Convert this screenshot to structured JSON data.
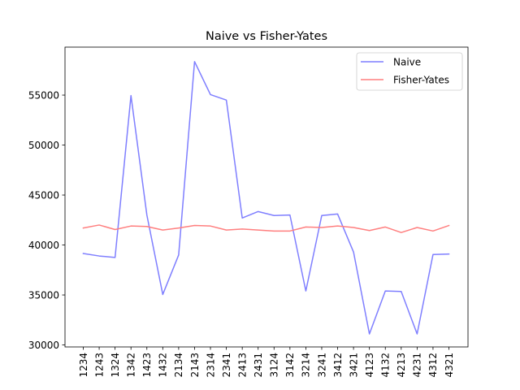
{
  "chart_data": {
    "type": "line",
    "title": "Naive vs Fisher-Yates",
    "xlabel": "",
    "ylabel": "",
    "categories": [
      "1234",
      "1243",
      "1324",
      "1342",
      "1423",
      "1432",
      "2134",
      "2143",
      "2314",
      "2341",
      "2413",
      "2431",
      "3124",
      "3142",
      "3214",
      "3241",
      "3412",
      "3421",
      "4123",
      "4132",
      "4213",
      "4231",
      "4312",
      "4321"
    ],
    "ylim": [
      29800,
      59800
    ],
    "yticks": [
      30000,
      35000,
      40000,
      45000,
      50000,
      55000
    ],
    "ytick_labels": [
      "30000",
      "35000",
      "40000",
      "45000",
      "50000",
      "55000"
    ],
    "grid": false,
    "legend_position": "top-right",
    "series": [
      {
        "name": "Naive",
        "color": "#7f7fff",
        "values": [
          39150,
          38900,
          38750,
          54950,
          43000,
          35050,
          39000,
          58350,
          55050,
          54500,
          42700,
          43350,
          42950,
          43000,
          35400,
          42950,
          43100,
          39300,
          31100,
          35400,
          35350,
          31100,
          39050,
          39100
        ]
      },
      {
        "name": "Fisher-Yates",
        "color": "#ff7f7f",
        "values": [
          41700,
          42000,
          41550,
          41900,
          41850,
          41500,
          41700,
          41950,
          41900,
          41500,
          41600,
          41500,
          41400,
          41400,
          41800,
          41750,
          41900,
          41750,
          41450,
          41800,
          41250,
          41750,
          41400,
          41950
        ]
      }
    ]
  }
}
